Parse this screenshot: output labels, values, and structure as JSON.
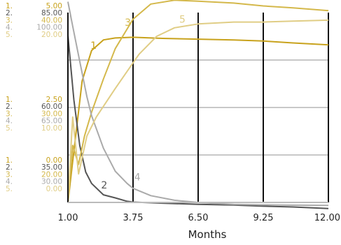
{
  "chart_data": {
    "type": "line",
    "xlabel": "Months",
    "xlim": [
      1,
      12
    ],
    "x_ticks": [
      "1.00",
      "3.75",
      "6.50",
      "9.25",
      "12.00"
    ],
    "grid": true,
    "series_colors": [
      "#c8a21c",
      "#555555",
      "#d4b84a",
      "#aaaaaa",
      "#e0cd85"
    ],
    "y_scales": [
      {
        "series": "1",
        "ticks": [
          "5.00",
          "2.50",
          "0.00"
        ],
        "ylim": [
          0,
          5
        ]
      },
      {
        "series": "2",
        "ticks": [
          "85.00",
          "60.00",
          "35.00"
        ],
        "ylim": [
          35,
          85
        ]
      },
      {
        "series": "3",
        "ticks": [
          "40.00",
          "30.00",
          "20.00"
        ],
        "ylim": [
          20,
          40
        ]
      },
      {
        "series": "4",
        "ticks": [
          "100.00",
          "65.00",
          "30.00"
        ],
        "ylim": [
          30,
          100
        ]
      },
      {
        "series": "5",
        "ticks": [
          "20.00",
          "10.00",
          "0.00"
        ],
        "ylim": [
          0,
          20
        ]
      }
    ],
    "series": [
      {
        "name": "1",
        "x": [
          1.0,
          1.3,
          1.6,
          2.0,
          2.5,
          3.0,
          3.75,
          5.0,
          6.5,
          8.0,
          9.25,
          10.5,
          12.0
        ],
        "values": [
          0.0,
          1.6,
          3.2,
          4.0,
          4.28,
          4.33,
          4.35,
          4.32,
          4.3,
          4.28,
          4.25,
          4.2,
          4.15
        ]
      },
      {
        "name": "2",
        "x": [
          1.0,
          1.25,
          1.5,
          1.75,
          2.0,
          2.5,
          3.0,
          3.5,
          3.75,
          5.0,
          6.5,
          8.0,
          9.25,
          10.5,
          12.0
        ],
        "values": [
          79.0,
          62.0,
          50.0,
          43.0,
          40.0,
          37.0,
          36.2,
          35.3,
          35.1,
          34.8,
          34.5,
          34.3,
          34.0,
          33.8,
          33.4
        ]
      },
      {
        "name": "3",
        "x": [
          1.0,
          1.2,
          1.45,
          1.7,
          2.0,
          2.5,
          3.0,
          3.75,
          4.5,
          5.5,
          6.5,
          8.0,
          9.25,
          10.5,
          12.0
        ],
        "values": [
          20.0,
          26.0,
          24.0,
          27.0,
          29.5,
          33.0,
          36.2,
          39.3,
          40.9,
          41.3,
          41.2,
          41.0,
          40.7,
          40.5,
          40.2
        ]
      },
      {
        "name": "4",
        "x": [
          1.0,
          1.2,
          1.5,
          1.8,
          2.0,
          2.5,
          3.0,
          3.5,
          3.75,
          4.5,
          5.5,
          6.5,
          8.0,
          9.25,
          10.5,
          12.0
        ],
        "values": [
          104.0,
          95.0,
          82.0,
          69.0,
          62.0,
          50.0,
          41.5,
          37.0,
          35.2,
          32.5,
          30.8,
          30.0,
          29.3,
          29.1,
          29.0,
          28.9
        ]
      },
      {
        "name": "5",
        "x": [
          1.0,
          1.2,
          1.45,
          1.8,
          2.2,
          2.6,
          3.0,
          3.5,
          4.0,
          4.75,
          5.5,
          6.5,
          8.0,
          9.25,
          10.5,
          12.0
        ],
        "values": [
          0.0,
          9.0,
          3.0,
          7.0,
          9.0,
          10.5,
          12.0,
          13.8,
          15.6,
          17.5,
          18.4,
          18.8,
          19.0,
          19.0,
          19.1,
          19.2
        ]
      }
    ]
  }
}
